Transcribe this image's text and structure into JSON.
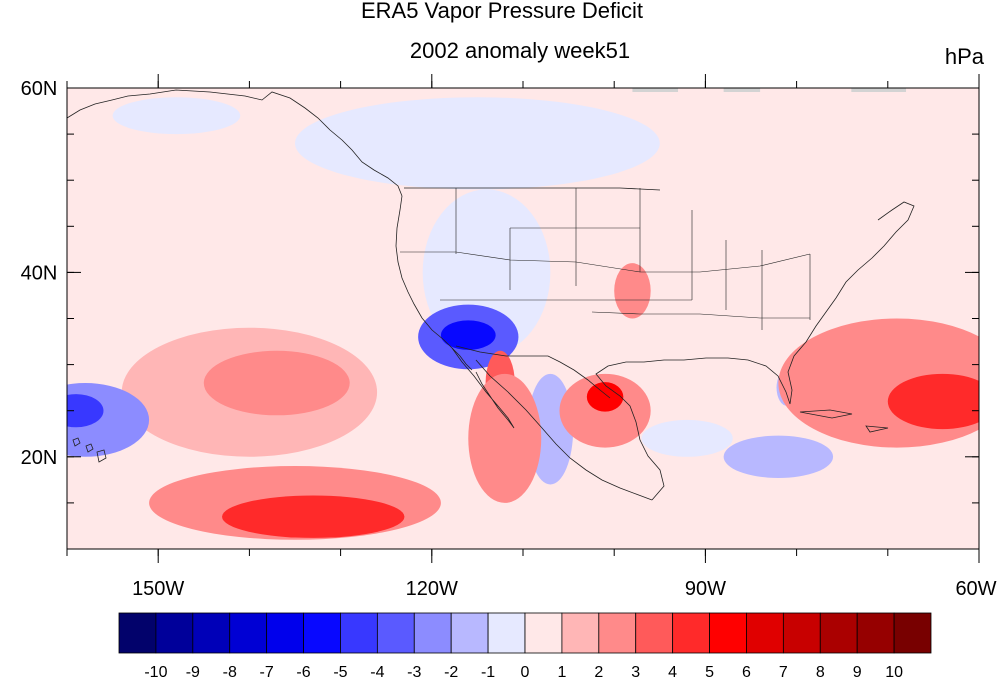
{
  "title": "ERA5 Vapor Pressure Deficit",
  "subtitle": "2002 anomaly week51",
  "units": "hPa",
  "map": {
    "lon_range": [
      -160,
      -60
    ],
    "lat_range": [
      10,
      60
    ],
    "lon_ticks": [
      {
        "value": -150,
        "label": "150W"
      },
      {
        "value": -120,
        "label": "120W"
      },
      {
        "value": -90,
        "label": "90W"
      },
      {
        "value": -60,
        "label": "60W"
      }
    ],
    "lat_ticks": [
      {
        "value": 60,
        "label": "60N"
      },
      {
        "value": 40,
        "label": "40N"
      },
      {
        "value": 20,
        "label": "20N"
      }
    ],
    "regions": [
      {
        "name": "north-pacific-positive-anomaly",
        "lon": -140,
        "lat": 27,
        "rlon": 14,
        "rlat": 7,
        "value": 1
      },
      {
        "name": "central-pacific-positive-core",
        "lon": -137,
        "lat": 28,
        "rlon": 8,
        "rlat": 3.5,
        "value": 2
      },
      {
        "name": "eastern-pacific-positive-anomaly",
        "lon": -135,
        "lat": 15,
        "rlon": 16,
        "rlat": 4,
        "value": 2
      },
      {
        "name": "eastern-pacific-positive-core",
        "lon": -133,
        "lat": 13.5,
        "rlon": 10,
        "rlat": 2.3,
        "value": 4
      },
      {
        "name": "hawaii-negative-anomaly",
        "lon": -158,
        "lat": 24,
        "rlon": 7,
        "rlat": 4,
        "value": -3
      },
      {
        "name": "hawaii-negative-core",
        "lon": -159,
        "lat": 25,
        "rlon": 3,
        "rlat": 1.8,
        "value": -5
      },
      {
        "name": "western-us-negative-anomaly",
        "lon": -114,
        "lat": 40,
        "rlon": 7,
        "rlat": 9,
        "value": -1
      },
      {
        "name": "california-negative-anomaly",
        "lon": -116,
        "lat": 33,
        "rlon": 5.5,
        "rlat": 3.5,
        "value": -4
      },
      {
        "name": "california-negative-core",
        "lon": -116,
        "lat": 33.2,
        "rlon": 3,
        "rlat": 1.6,
        "value": -6
      },
      {
        "name": "baja-positive-strip",
        "lon": -112.5,
        "lat": 28,
        "rlon": 1.6,
        "rlat": 3.5,
        "value": 3
      },
      {
        "name": "mexico-negative-strip",
        "lon": -107,
        "lat": 23,
        "rlon": 2.5,
        "rlat": 6,
        "value": -2
      },
      {
        "name": "west-mexico-positive-anomaly",
        "lon": -112,
        "lat": 22,
        "rlon": 4,
        "rlat": 7,
        "value": 2
      },
      {
        "name": "northern-mexico-positive-anomaly",
        "lon": -101,
        "lat": 25,
        "rlon": 5,
        "rlat": 4,
        "value": 2
      },
      {
        "name": "northern-mexico-positive-core",
        "lon": -101,
        "lat": 26.5,
        "rlon": 2,
        "rlat": 1.6,
        "value": 5
      },
      {
        "name": "florida-negative-anomaly",
        "lon": -81,
        "lat": 27.5,
        "rlon": 1.2,
        "rlat": 2,
        "value": -2
      },
      {
        "name": "caribbean-negative-anomaly",
        "lon": -82,
        "lat": 20,
        "rlon": 6,
        "rlat": 2.3,
        "value": -2
      },
      {
        "name": "gulf-negative-anomaly",
        "lon": -92,
        "lat": 22,
        "rlon": 5,
        "rlat": 2,
        "value": -1
      },
      {
        "name": "atlantic-positive-anomaly",
        "lon": -69,
        "lat": 28,
        "rlon": 13,
        "rlat": 7,
        "value": 2
      },
      {
        "name": "atlantic-positive-core",
        "lon": -64,
        "lat": 26,
        "rlon": 6,
        "rlat": 3,
        "value": 4
      },
      {
        "name": "central-us-positive-anomaly",
        "lon": -98,
        "lat": 38,
        "rlon": 2,
        "rlat": 3,
        "value": 2
      },
      {
        "name": "canada-negative-anomaly",
        "lon": -115,
        "lat": 54,
        "rlon": 20,
        "rlat": 5,
        "value": -1
      },
      {
        "name": "alaska-negative-anomaly",
        "lon": -148,
        "lat": 57,
        "rlon": 7,
        "rlat": 2,
        "value": -1
      }
    ]
  },
  "colorbar": {
    "labels": [
      "-10",
      "-9",
      "-8",
      "-7",
      "-6",
      "-5",
      "-4",
      "-3",
      "-2",
      "-1",
      "0",
      "1",
      "2",
      "3",
      "4",
      "5",
      "6",
      "7",
      "8",
      "9",
      "10"
    ],
    "colors": [
      "#02026b",
      "#00009a",
      "#0000b8",
      "#0000d4",
      "#0000ec",
      "#0808ff",
      "#3838ff",
      "#5a5aff",
      "#8c8cff",
      "#b8b8ff",
      "#e6e9ff",
      "#ffe8e8",
      "#ffb6b6",
      "#ff8a8a",
      "#ff5a5a",
      "#ff2a2a",
      "#ff0000",
      "#e00000",
      "#c80000",
      "#aa0000",
      "#960000",
      "#780000"
    ],
    "missing_color": "#d3d3d3"
  }
}
